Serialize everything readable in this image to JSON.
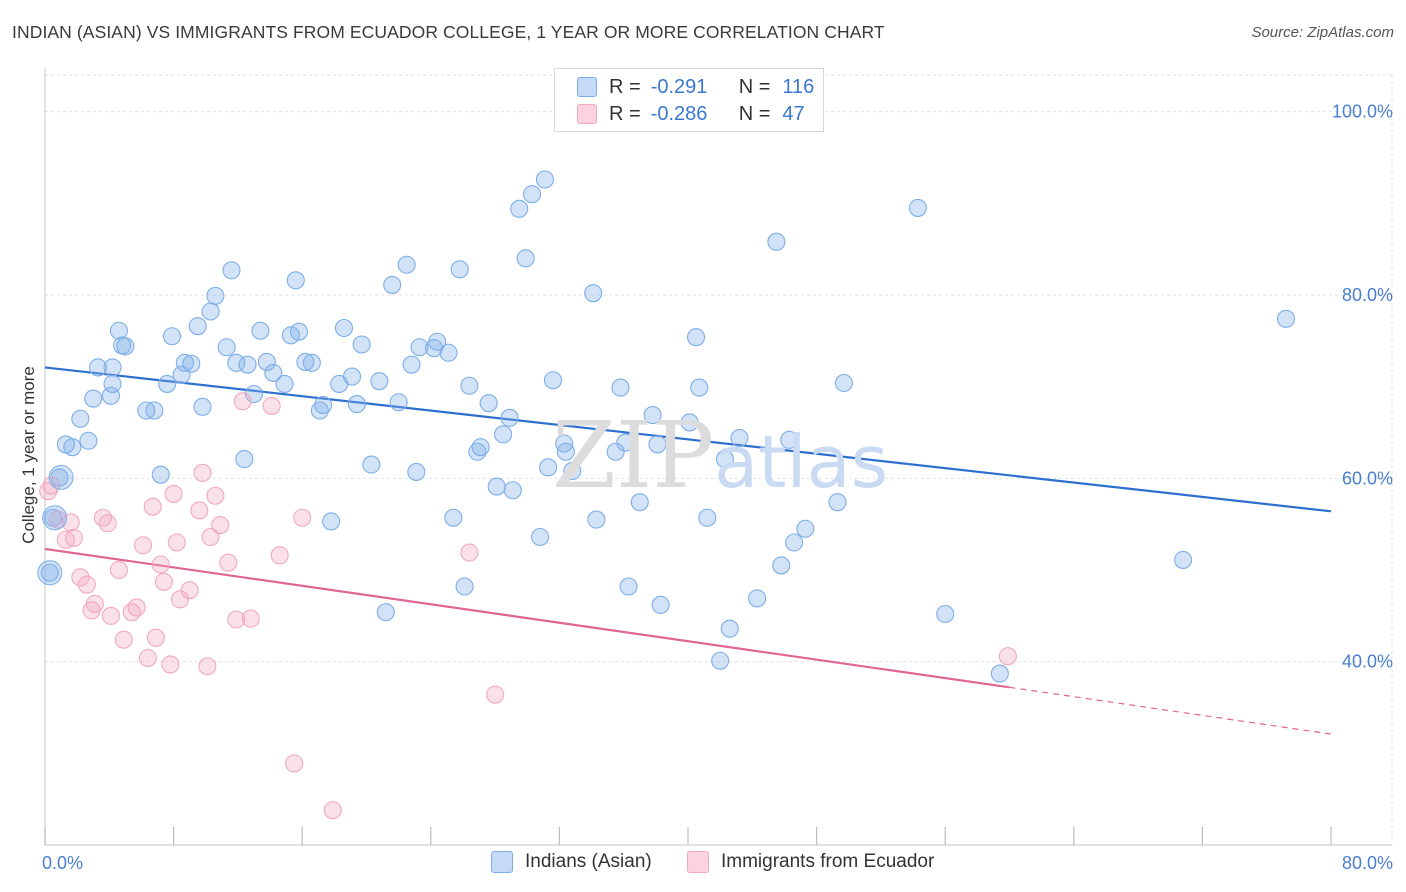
{
  "title": "INDIAN (ASIAN) VS IMMIGRANTS FROM ECUADOR COLLEGE, 1 YEAR OR MORE CORRELATION CHART",
  "source": "Source: ZipAtlas.com",
  "watermark": {
    "zip": "ZIP",
    "atlas": "atlas"
  },
  "legend": {
    "rows": [
      {
        "r_label": "R =",
        "r_value": "-0.291",
        "n_label": "N =",
        "n_value": "116"
      },
      {
        "r_label": "R =",
        "r_value": "-0.286",
        "n_label": "N =",
        "n_value": "47"
      }
    ]
  },
  "chart_data": {
    "type": "scatter",
    "title": "INDIAN (ASIAN) VS IMMIGRANTS FROM ECUADOR COLLEGE, 1 YEAR OR MORE CORRELATION CHART",
    "xlabel": "",
    "ylabel": "College, 1 year or more",
    "xlim": [
      0,
      80
    ],
    "ylim": [
      20,
      104
    ],
    "x_tick_labels": [
      "0.0%",
      "80.0%"
    ],
    "y_ticks": [
      40,
      60,
      80,
      100
    ],
    "y_tick_labels": [
      "40.0%",
      "60.0%",
      "80.0%",
      "100.0%"
    ],
    "grid": true,
    "legend_position": "top-center",
    "series": [
      {
        "name": "Indians (Asian)",
        "color": "#7eaee8",
        "line_color": "#2d6fcf",
        "trend": {
          "x": [
            0,
            80
          ],
          "y": [
            72.1,
            56.4
          ]
        },
        "points": [
          [
            0.3,
            49.7
          ],
          [
            0.5,
            55.7
          ],
          [
            0.9,
            60.1
          ],
          [
            1.3,
            63.7
          ],
          [
            1.7,
            63.4
          ],
          [
            2.2,
            66.5
          ],
          [
            2.7,
            64.1
          ],
          [
            3.0,
            68.7
          ],
          [
            3.3,
            72.1
          ],
          [
            4.1,
            69.0
          ],
          [
            4.2,
            72.1
          ],
          [
            4.2,
            70.3
          ],
          [
            4.6,
            76.1
          ],
          [
            4.8,
            74.5
          ],
          [
            5.0,
            74.4
          ],
          [
            6.3,
            67.4
          ],
          [
            6.8,
            67.4
          ],
          [
            7.2,
            60.4
          ],
          [
            7.6,
            70.3
          ],
          [
            7.9,
            75.5
          ],
          [
            8.5,
            71.3
          ],
          [
            8.7,
            72.6
          ],
          [
            9.1,
            72.5
          ],
          [
            9.5,
            76.6
          ],
          [
            9.8,
            67.8
          ],
          [
            10.3,
            78.2
          ],
          [
            10.6,
            79.9
          ],
          [
            11.3,
            74.3
          ],
          [
            11.6,
            82.7
          ],
          [
            11.9,
            72.6
          ],
          [
            12.4,
            62.1
          ],
          [
            12.6,
            72.4
          ],
          [
            13.0,
            69.2
          ],
          [
            13.4,
            76.1
          ],
          [
            13.8,
            72.7
          ],
          [
            14.2,
            71.5
          ],
          [
            14.9,
            70.3
          ],
          [
            15.3,
            75.6
          ],
          [
            15.6,
            81.6
          ],
          [
            15.8,
            76.0
          ],
          [
            16.2,
            72.7
          ],
          [
            16.6,
            72.6
          ],
          [
            17.1,
            67.4
          ],
          [
            17.3,
            68.0
          ],
          [
            17.8,
            55.3
          ],
          [
            18.3,
            70.3
          ],
          [
            18.6,
            76.4
          ],
          [
            19.1,
            71.1
          ],
          [
            19.4,
            68.1
          ],
          [
            19.7,
            74.6
          ],
          [
            20.3,
            61.5
          ],
          [
            20.8,
            70.6
          ],
          [
            21.2,
            45.4
          ],
          [
            21.6,
            81.1
          ],
          [
            22.0,
            68.3
          ],
          [
            22.5,
            83.3
          ],
          [
            22.8,
            72.4
          ],
          [
            23.1,
            60.7
          ],
          [
            23.3,
            74.3
          ],
          [
            24.2,
            74.2
          ],
          [
            24.4,
            74.9
          ],
          [
            25.1,
            73.7
          ],
          [
            25.4,
            55.7
          ],
          [
            25.8,
            82.8
          ],
          [
            26.1,
            48.2
          ],
          [
            26.4,
            70.1
          ],
          [
            26.9,
            62.9
          ],
          [
            27.1,
            63.4
          ],
          [
            27.6,
            68.2
          ],
          [
            28.1,
            59.1
          ],
          [
            28.5,
            64.8
          ],
          [
            28.9,
            66.6
          ],
          [
            29.1,
            58.7
          ],
          [
            29.5,
            89.4
          ],
          [
            29.9,
            84.0
          ],
          [
            30.3,
            91.0
          ],
          [
            30.8,
            53.6
          ],
          [
            31.1,
            92.6
          ],
          [
            31.3,
            61.2
          ],
          [
            31.6,
            70.7
          ],
          [
            32.3,
            63.8
          ],
          [
            32.4,
            62.9
          ],
          [
            32.8,
            60.8
          ],
          [
            34.1,
            80.2
          ],
          [
            34.3,
            55.5
          ],
          [
            35.5,
            62.9
          ],
          [
            35.8,
            69.9
          ],
          [
            36.1,
            63.9
          ],
          [
            36.3,
            48.2
          ],
          [
            37.0,
            57.4
          ],
          [
            37.8,
            66.9
          ],
          [
            38.1,
            63.7
          ],
          [
            38.3,
            46.2
          ],
          [
            40.1,
            66.1
          ],
          [
            40.5,
            75.4
          ],
          [
            40.7,
            69.9
          ],
          [
            41.2,
            55.7
          ],
          [
            42.0,
            40.1
          ],
          [
            42.3,
            62.1
          ],
          [
            42.6,
            43.6
          ],
          [
            43.2,
            64.4
          ],
          [
            44.3,
            46.9
          ],
          [
            45.5,
            85.8
          ],
          [
            45.8,
            50.5
          ],
          [
            46.3,
            64.2
          ],
          [
            46.6,
            53.0
          ],
          [
            47.3,
            54.5
          ],
          [
            49.3,
            57.4
          ],
          [
            49.7,
            70.4
          ],
          [
            54.3,
            89.5
          ],
          [
            56.0,
            45.2
          ],
          [
            59.4,
            38.7
          ],
          [
            70.8,
            51.1
          ],
          [
            77.2,
            77.4
          ]
        ]
      },
      {
        "name": "Immigrants from Ecuador",
        "color": "#f2a9c0",
        "line_color": "#e06595",
        "trend": {
          "x": [
            0,
            60
          ],
          "y": [
            52.3,
            37.2
          ]
        },
        "trend_dashed": {
          "x": [
            60,
            80
          ],
          "y": [
            37.2,
            32.1
          ]
        },
        "points": [
          [
            0.2,
            58.6
          ],
          [
            0.4,
            59.2
          ],
          [
            0.8,
            55.5
          ],
          [
            1.3,
            53.3
          ],
          [
            1.6,
            55.2
          ],
          [
            1.8,
            53.5
          ],
          [
            2.2,
            49.2
          ],
          [
            2.6,
            48.4
          ],
          [
            2.9,
            45.6
          ],
          [
            3.1,
            46.3
          ],
          [
            3.6,
            55.7
          ],
          [
            3.9,
            55.1
          ],
          [
            4.1,
            45.0
          ],
          [
            4.6,
            50.0
          ],
          [
            4.9,
            42.4
          ],
          [
            5.4,
            45.4
          ],
          [
            5.7,
            45.9
          ],
          [
            6.1,
            52.7
          ],
          [
            6.4,
            40.4
          ],
          [
            6.7,
            56.9
          ],
          [
            6.9,
            42.6
          ],
          [
            7.2,
            50.6
          ],
          [
            7.4,
            48.7
          ],
          [
            7.8,
            39.7
          ],
          [
            8.0,
            58.3
          ],
          [
            8.2,
            53.0
          ],
          [
            8.4,
            46.8
          ],
          [
            9.0,
            47.8
          ],
          [
            9.6,
            56.5
          ],
          [
            9.8,
            60.6
          ],
          [
            10.1,
            39.5
          ],
          [
            10.3,
            53.6
          ],
          [
            10.6,
            58.1
          ],
          [
            10.9,
            54.9
          ],
          [
            11.4,
            50.8
          ],
          [
            11.9,
            44.6
          ],
          [
            12.3,
            68.4
          ],
          [
            12.8,
            44.7
          ],
          [
            14.1,
            67.9
          ],
          [
            14.6,
            51.6
          ],
          [
            15.5,
            28.9
          ],
          [
            16.0,
            55.7
          ],
          [
            17.9,
            23.8
          ],
          [
            26.4,
            51.9
          ],
          [
            28.0,
            36.4
          ],
          [
            59.9,
            40.6
          ]
        ]
      }
    ]
  },
  "bottom_legend": {
    "items": [
      {
        "label": "Indians (Asian)"
      },
      {
        "label": "Immigrants from Ecuador"
      }
    ]
  }
}
